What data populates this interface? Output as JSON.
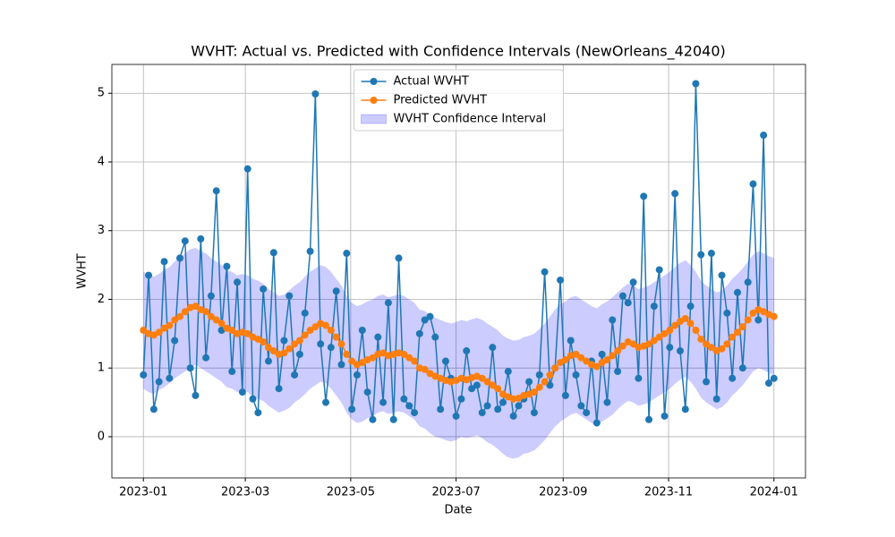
{
  "chart_data": {
    "type": "line",
    "title": "WVHT: Actual vs. Predicted with Confidence Intervals (NewOrleans_42040)",
    "xlabel": "Date",
    "ylabel": "WVHT",
    "xticks": [
      "2023-01",
      "2023-03",
      "2023-05",
      "2023-07",
      "2023-09",
      "2023-11",
      "2024-01"
    ],
    "ylim": [
      -0.6,
      5.42
    ],
    "yticks": [
      0,
      1,
      2,
      3,
      4,
      5
    ],
    "grid": true,
    "legend": "upper center",
    "series": [
      {
        "name": "Actual WVHT",
        "color": "#1f77b4",
        "values": [
          0.9,
          2.35,
          0.4,
          0.8,
          2.55,
          0.85,
          1.4,
          2.6,
          2.85,
          1.0,
          0.6,
          2.88,
          1.15,
          2.05,
          3.58,
          1.55,
          2.48,
          0.95,
          2.25,
          0.65,
          3.9,
          0.55,
          0.35,
          2.15,
          1.1,
          2.68,
          0.7,
          1.4,
          2.05,
          0.9,
          1.2,
          1.8,
          2.7,
          4.99,
          1.35,
          0.5,
          1.3,
          2.12,
          1.05,
          2.67,
          0.4,
          0.9,
          1.55,
          0.65,
          0.25,
          1.45,
          0.5,
          1.95,
          0.25,
          2.6,
          0.55,
          0.45,
          0.35,
          1.5,
          1.7,
          1.75,
          1.45,
          0.4,
          1.1,
          0.85,
          0.3,
          0.55,
          1.25,
          0.7,
          0.75,
          0.35,
          0.45,
          1.3,
          0.4,
          0.5,
          0.95,
          0.3,
          0.45,
          0.55,
          0.8,
          0.35,
          0.9,
          2.4,
          0.75,
          1.0,
          2.28,
          0.6,
          1.4,
          0.9,
          0.45,
          0.35,
          1.1,
          0.2,
          1.2,
          0.5,
          1.7,
          0.95,
          2.05,
          1.95,
          2.25,
          0.85,
          3.5,
          0.25,
          1.9,
          2.43,
          0.3,
          1.3,
          3.54,
          1.25,
          0.4,
          1.9,
          5.14,
          2.65,
          0.8,
          2.67,
          0.55,
          2.35,
          1.8,
          0.85,
          2.1,
          1.0,
          2.25,
          3.68,
          1.7,
          4.39,
          0.78,
          0.85
        ]
      },
      {
        "name": "Predicted WVHT",
        "color": "#ff7f0e",
        "values": [
          1.55,
          1.5,
          1.48,
          1.52,
          1.58,
          1.62,
          1.7,
          1.75,
          1.82,
          1.88,
          1.9,
          1.85,
          1.82,
          1.75,
          1.7,
          1.65,
          1.58,
          1.55,
          1.5,
          1.52,
          1.5,
          1.45,
          1.42,
          1.38,
          1.3,
          1.25,
          1.2,
          1.22,
          1.28,
          1.35,
          1.4,
          1.48,
          1.55,
          1.6,
          1.65,
          1.62,
          1.55,
          1.45,
          1.35,
          1.2,
          1.1,
          1.05,
          1.08,
          1.12,
          1.15,
          1.2,
          1.22,
          1.18,
          1.2,
          1.22,
          1.2,
          1.15,
          1.1,
          1.0,
          0.98,
          0.92,
          0.88,
          0.85,
          0.82,
          0.8,
          0.82,
          0.85,
          0.83,
          0.86,
          0.88,
          0.85,
          0.8,
          0.75,
          0.7,
          0.62,
          0.58,
          0.55,
          0.56,
          0.6,
          0.62,
          0.65,
          0.72,
          0.8,
          0.9,
          1.0,
          1.08,
          1.12,
          1.18,
          1.2,
          1.15,
          1.1,
          1.05,
          1.02,
          1.08,
          1.12,
          1.18,
          1.25,
          1.32,
          1.38,
          1.35,
          1.3,
          1.32,
          1.35,
          1.4,
          1.45,
          1.5,
          1.55,
          1.62,
          1.68,
          1.72,
          1.65,
          1.55,
          1.42,
          1.35,
          1.3,
          1.25,
          1.28,
          1.35,
          1.45,
          1.52,
          1.6,
          1.7,
          1.8,
          1.85,
          1.82,
          1.78,
          1.75
        ]
      }
    ],
    "band": {
      "name": "WVHT Confidence Interval",
      "color": "#0000ff",
      "lower": [
        0.7,
        0.65,
        0.62,
        0.68,
        0.72,
        0.78,
        0.85,
        0.9,
        0.95,
        1.0,
        1.05,
        1.0,
        0.95,
        0.9,
        0.85,
        0.8,
        0.72,
        0.7,
        0.65,
        0.68,
        0.65,
        0.58,
        0.55,
        0.52,
        0.45,
        0.4,
        0.35,
        0.38,
        0.42,
        0.5,
        0.55,
        0.62,
        0.7,
        0.75,
        0.8,
        0.78,
        0.7,
        0.6,
        0.5,
        0.35,
        0.25,
        0.2,
        0.22,
        0.27,
        0.3,
        0.35,
        0.37,
        0.33,
        0.35,
        0.37,
        0.35,
        0.3,
        0.25,
        0.15,
        0.12,
        0.05,
        0.0,
        -0.02,
        -0.05,
        -0.07,
        -0.05,
        0.0,
        -0.02,
        0.0,
        0.02,
        -0.02,
        -0.08,
        -0.12,
        -0.18,
        -0.25,
        -0.3,
        -0.32,
        -0.3,
        -0.25,
        -0.23,
        -0.2,
        -0.13,
        -0.05,
        0.05,
        0.15,
        0.22,
        0.27,
        0.32,
        0.35,
        0.3,
        0.25,
        0.2,
        0.17,
        0.22,
        0.27,
        0.32,
        0.4,
        0.47,
        0.52,
        0.5,
        0.45,
        0.47,
        0.5,
        0.55,
        0.6,
        0.65,
        0.7,
        0.77,
        0.83,
        0.87,
        0.8,
        0.7,
        0.57,
        0.5,
        0.45,
        0.4,
        0.43,
        0.5,
        0.6,
        0.67,
        0.75,
        0.85,
        0.95,
        1.0,
        0.97,
        0.93,
        0.9
      ],
      "upper": [
        2.4,
        2.35,
        2.33,
        2.37,
        2.43,
        2.47,
        2.55,
        2.6,
        2.67,
        2.73,
        2.75,
        2.7,
        2.67,
        2.6,
        2.55,
        2.5,
        2.43,
        2.4,
        2.35,
        2.37,
        2.35,
        2.3,
        2.27,
        2.23,
        2.15,
        2.1,
        2.05,
        2.07,
        2.13,
        2.2,
        2.25,
        2.33,
        2.4,
        2.45,
        2.5,
        2.47,
        2.4,
        2.3,
        2.2,
        2.05,
        1.95,
        1.9,
        1.93,
        1.97,
        2.0,
        2.05,
        2.07,
        2.03,
        2.05,
        2.07,
        2.05,
        2.0,
        1.95,
        1.85,
        1.83,
        1.77,
        1.73,
        1.7,
        1.67,
        1.65,
        1.67,
        1.7,
        1.68,
        1.71,
        1.73,
        1.7,
        1.65,
        1.6,
        1.55,
        1.47,
        1.43,
        1.4,
        1.41,
        1.45,
        1.47,
        1.5,
        1.57,
        1.65,
        1.75,
        1.85,
        1.93,
        1.97,
        2.03,
        2.05,
        2.0,
        1.95,
        1.9,
        1.87,
        1.93,
        1.97,
        2.03,
        2.1,
        2.17,
        2.23,
        2.2,
        2.15,
        2.17,
        2.2,
        2.25,
        2.3,
        2.35,
        2.4,
        2.47,
        2.53,
        2.57,
        2.5,
        2.4,
        2.27,
        2.2,
        2.15,
        2.1,
        2.13,
        2.2,
        2.3,
        2.37,
        2.45,
        2.55,
        2.65,
        2.7,
        2.67,
        2.63,
        2.6
      ]
    }
  }
}
